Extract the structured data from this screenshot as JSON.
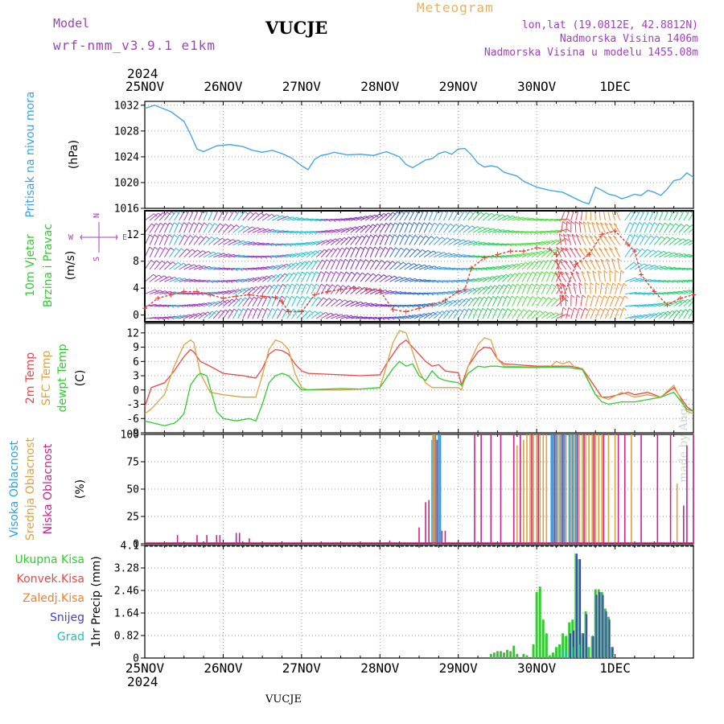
{
  "header": {
    "model_label": "Model",
    "model_name": "wrf-nmm_v3.9.1  e1km",
    "station": "VUCJE",
    "title": "Meteogram",
    "lonlat": "lon,lat (19.0812E, 42.8812N)",
    "elevation": "Nadmorska Visina 1406m",
    "model_elevation": "Nadmorska Visina u modelu 1455.08m"
  },
  "footer": {
    "station": "VUCJE",
    "credit": "made by Angel"
  },
  "colors": {
    "pressure": "#3aa0e8",
    "temp2m": "#ee4444",
    "sfc": "#e0a040",
    "dew": "#30cc30",
    "cloud_high": "#2ea0e0",
    "cloud_mid": "#e0a040",
    "cloud_low": "#d0208a",
    "precip_total": "#30cc30",
    "precip_conv": "#ee4444",
    "precip_frz": "#f08030",
    "snow": "#4040d0",
    "hail": "#20c0c0",
    "purple": "#a040c0"
  },
  "time_axis": {
    "year": "2024",
    "days": [
      "25NOV",
      "26NOV",
      "27NOV",
      "28NOV",
      "29NOV",
      "30NOV",
      "1DEC"
    ]
  },
  "chart_data": [
    {
      "type": "line",
      "panel": "pressure",
      "ylabel": [
        "Pritisak na nivou mora",
        "(hPa)"
      ],
      "yticks": [
        "1032",
        "1028",
        "1024",
        "1020",
        "1016"
      ],
      "ylim": [
        1016,
        1032.6
      ],
      "x_unit": "hours since 25NOV 00",
      "series": [
        {
          "name": "Pritisak na nivou mora",
          "x": [
            0,
            3,
            8,
            12,
            14,
            16,
            18,
            22,
            26,
            30,
            33,
            36,
            39,
            42,
            45,
            48,
            50,
            52,
            54,
            56,
            58,
            62,
            66,
            70,
            74,
            78,
            80,
            82,
            84,
            86,
            88,
            90,
            92,
            94,
            96,
            98,
            100,
            102,
            104,
            106,
            108,
            110,
            112,
            114,
            116,
            120,
            124,
            128,
            130,
            132,
            134,
            136,
            138,
            140,
            142,
            144,
            146,
            148,
            150,
            152,
            154,
            156,
            158,
            160,
            162,
            164,
            166,
            168
          ],
          "y": [
            1031.5,
            1032.0,
            1031.0,
            1029.5,
            1027.5,
            1025.2,
            1024.8,
            1025.7,
            1025.9,
            1025.6,
            1025.0,
            1024.7,
            1025.0,
            1024.5,
            1023.8,
            1022.6,
            1022.0,
            1023.6,
            1024.2,
            1024.4,
            1024.7,
            1024.3,
            1024.4,
            1024.2,
            1024.8,
            1024.0,
            1022.8,
            1022.3,
            1022.9,
            1023.5,
            1023.7,
            1024.5,
            1024.8,
            1024.4,
            1025.2,
            1025.3,
            1024.3,
            1023.0,
            1022.4,
            1022.6,
            1022.4,
            1021.6,
            1021.3,
            1021.0,
            1020.2,
            1019.3,
            1018.8,
            1018.5,
            1018.0,
            1017.5,
            1017.0,
            1016.7,
            1019.3,
            1018.8,
            1018.2,
            1018.0,
            1017.5,
            1017.8,
            1018.2,
            1018.0,
            1018.8,
            1018.5,
            1018.0,
            1019.0,
            1020.3,
            1020.5,
            1021.5,
            1020.8
          ]
        }
      ]
    },
    {
      "type": "line",
      "panel": "wind",
      "ylabel": [
        "10m Vjetar",
        "Brzina i Pravac",
        "(m/s)"
      ],
      "compass": [
        "N",
        "W",
        "E",
        "S"
      ],
      "yticks": [
        "12",
        "8",
        "4",
        "0"
      ],
      "ylim": [
        -1,
        15.5
      ],
      "series": [
        {
          "name": "10m Vjetar",
          "x": [
            0,
            4,
            8,
            12,
            16,
            20,
            24,
            28,
            32,
            36,
            40,
            42,
            44,
            48,
            52,
            56,
            60,
            64,
            68,
            72,
            76,
            80,
            84,
            88,
            92,
            96,
            98,
            100,
            104,
            108,
            112,
            116,
            120,
            124,
            126,
            128,
            132,
            136,
            140,
            144,
            148,
            150,
            152,
            156,
            160,
            164,
            168
          ],
          "y": [
            1.0,
            2.5,
            3.0,
            3.5,
            3.5,
            3.0,
            2.5,
            2.8,
            3.0,
            2.8,
            2.6,
            2.0,
            0.5,
            0.5,
            3.0,
            3.5,
            3.8,
            4.0,
            3.8,
            3.6,
            0.8,
            0.5,
            1.0,
            1.5,
            2.2,
            3.5,
            3.8,
            7.0,
            8.5,
            9.0,
            9.5,
            9.5,
            10.0,
            9.8,
            9.0,
            2.5,
            7.5,
            9.0,
            12.0,
            12.5,
            10.5,
            9.5,
            6.0,
            3.5,
            1.5,
            2.5,
            3.0
          ]
        }
      ]
    },
    {
      "type": "line",
      "panel": "temperature",
      "ylabel": [
        "2m Temp",
        "SFC Temp",
        "dewpt Temp",
        "(C)"
      ],
      "yticks": [
        "12",
        "9",
        "6",
        "3",
        "0",
        "-3",
        "-6",
        "-9"
      ],
      "ylim": [
        -9,
        14
      ],
      "series": [
        {
          "name": "2m Temp",
          "x": [
            0,
            2,
            6,
            9,
            12,
            14,
            15,
            17,
            20,
            24,
            30,
            34,
            36,
            38,
            40,
            42,
            44,
            46,
            48,
            50,
            60,
            66,
            72,
            74,
            76,
            78,
            80,
            82,
            84,
            86,
            88,
            90,
            92,
            96,
            97,
            99,
            102,
            104,
            106,
            108,
            110,
            120,
            124,
            130,
            132,
            134,
            138,
            140,
            142,
            148,
            150,
            154,
            158,
            162,
            166,
            168
          ],
          "y": [
            -3.5,
            0.5,
            1.5,
            4.0,
            7.0,
            8.5,
            8.0,
            6.0,
            5.0,
            3.5,
            3.0,
            2.5,
            4.5,
            7.5,
            8.5,
            8.3,
            7.5,
            5.5,
            4.0,
            3.5,
            3.2,
            3.0,
            3.2,
            5.5,
            7.5,
            9.5,
            10.5,
            9.0,
            7.5,
            6.0,
            5.0,
            5.3,
            4.0,
            3.6,
            1.0,
            5.0,
            8.0,
            9.0,
            8.8,
            6.5,
            5.5,
            5.0,
            5.0,
            5.0,
            4.8,
            4.5,
            0.5,
            -1.5,
            -1.5,
            -0.5,
            -1.0,
            -0.5,
            -1.5,
            0.5,
            -3.5,
            -4.5
          ]
        },
        {
          "name": "SFC Temp",
          "x": [
            0,
            2,
            6,
            9,
            12,
            14,
            15,
            17,
            20,
            24,
            30,
            34,
            36,
            38,
            40,
            42,
            44,
            46,
            48,
            50,
            60,
            66,
            72,
            74,
            76,
            78,
            80,
            82,
            84,
            86,
            88,
            90,
            92,
            96,
            97,
            99,
            102,
            104,
            106,
            108,
            110,
            120,
            124,
            126,
            128,
            130,
            132,
            134,
            138,
            140,
            142,
            146,
            150,
            154,
            158,
            162,
            166,
            168
          ],
          "y": [
            -5.0,
            -4.0,
            -1.0,
            5.0,
            9.5,
            10.5,
            10.0,
            3.5,
            -0.5,
            -1.0,
            -1.5,
            -1.5,
            3.0,
            8.5,
            10.5,
            10.0,
            8.5,
            3.5,
            0.5,
            0.0,
            0.0,
            0.2,
            0.5,
            5.0,
            10.0,
            12.5,
            12.0,
            8.0,
            4.0,
            1.5,
            0.5,
            0.5,
            0.5,
            0.5,
            0.0,
            5.0,
            9.5,
            11.0,
            10.5,
            6.5,
            5.0,
            4.8,
            4.8,
            6.0,
            5.5,
            6.0,
            4.5,
            4.5,
            -1.0,
            -1.5,
            -2.0,
            -0.5,
            -1.5,
            -1.0,
            -1.5,
            1.0,
            -4.5,
            -5.0
          ]
        },
        {
          "name": "dewpt Temp",
          "x": [
            0,
            3,
            6,
            9,
            10,
            12,
            14,
            16,
            17,
            19,
            22,
            24,
            28,
            32,
            34,
            36,
            38,
            40,
            42,
            44,
            48,
            60,
            66,
            72,
            74,
            76,
            78,
            80,
            82,
            84,
            86,
            88,
            90,
            92,
            96,
            97,
            99,
            102,
            104,
            106,
            108,
            110,
            120,
            124,
            130,
            132,
            134,
            138,
            140,
            142,
            146,
            150,
            154,
            158,
            162,
            166,
            168
          ],
          "y": [
            -6.5,
            -7.0,
            -7.5,
            -7.0,
            -6.5,
            -5.0,
            1.0,
            3.0,
            3.5,
            3.0,
            -4.5,
            -6.0,
            -6.5,
            -6.0,
            -6.5,
            -3.0,
            1.5,
            3.0,
            3.5,
            3.0,
            0.0,
            0.3,
            0.2,
            0.5,
            2.5,
            4.5,
            6.0,
            5.0,
            5.5,
            3.0,
            2.0,
            4.0,
            2.5,
            2.0,
            1.5,
            1.0,
            3.5,
            5.0,
            4.8,
            5.0,
            5.0,
            4.8,
            4.7,
            4.8,
            4.7,
            4.5,
            4.3,
            -1.0,
            -2.5,
            -3.0,
            -2.5,
            -2.5,
            -2.0,
            -1.5,
            -0.5,
            -4.0,
            -4.5
          ]
        }
      ]
    },
    {
      "type": "bar",
      "panel": "clouds",
      "ylabel": [
        "Visoka Oblacnost",
        "Srednja Oblacnost",
        "Niska Oblacnost",
        "(%)"
      ],
      "yticks": [
        "100",
        "75",
        "50",
        "25",
        "0"
      ],
      "ylim": [
        0,
        100
      ],
      "series": [
        {
          "name": "Visoka Oblacnost",
          "x": [
            88,
            88.5,
            89,
            90,
            90.5,
            124.5,
            125,
            126,
            127.5,
            128.5,
            130,
            131,
            132
          ],
          "y": [
            95,
            100,
            100,
            100,
            100,
            100,
            100,
            100,
            100,
            100,
            100,
            100,
            100
          ]
        },
        {
          "name": "Srednja Oblacnost",
          "x": [
            88.2,
            88.7,
            114,
            116,
            117,
            118,
            119,
            120,
            121,
            122,
            123,
            126.5,
            127,
            129,
            130.5,
            131.5,
            133,
            134,
            135,
            136,
            137,
            138,
            139,
            140,
            142,
            144,
            149,
            163
          ],
          "y": [
            100,
            100,
            90,
            95,
            100,
            100,
            100,
            100,
            100,
            100,
            100,
            100,
            100,
            100,
            100,
            100,
            100,
            100,
            100,
            100,
            100,
            100,
            100,
            100,
            100,
            100,
            100,
            55
          ]
        },
        {
          "name": "Niska Oblacnost",
          "x": [
            10,
            16,
            19,
            22,
            23,
            28,
            29,
            32,
            75,
            84,
            86,
            87,
            89.5,
            91,
            92,
            101,
            103,
            106,
            109,
            113,
            115,
            118.5,
            120.5,
            125.5,
            128,
            132.5,
            134.5,
            137.5,
            140.5,
            145,
            147,
            152,
            157,
            161,
            165,
            166,
            168
          ],
          "y": [
            8,
            8,
            8,
            8,
            8,
            10,
            10,
            5,
            3,
            15,
            38,
            40,
            95,
            12,
            12,
            100,
            100,
            100,
            100,
            100,
            100,
            100,
            100,
            100,
            100,
            100,
            100,
            100,
            100,
            100,
            100,
            100,
            100,
            100,
            35,
            90,
            100
          ]
        }
      ]
    },
    {
      "type": "bar",
      "panel": "precipitation",
      "ylabel": [
        "Ukupna Kisa",
        "Konvek.Kisa",
        "Zaledj.Kisa",
        "Snijeg",
        "Grad",
        "1hr Precip (mm)"
      ],
      "yticks": [
        "4.1",
        "3.28",
        "2.46",
        "1.64",
        "0.82",
        "0"
      ],
      "ylim": [
        0,
        4.1
      ],
      "series": [
        {
          "name": "Ukupna Kisa",
          "x": [
            106,
            107,
            108,
            109,
            110,
            111,
            112,
            113,
            114,
            116,
            117,
            119,
            120,
            121,
            122,
            123,
            124,
            125,
            126,
            127,
            128,
            129,
            130,
            131,
            132,
            133,
            134,
            135,
            136,
            137,
            138,
            139,
            140,
            141,
            142,
            143
          ],
          "y": [
            0.15,
            0.2,
            0.25,
            0.25,
            0.2,
            0.3,
            0.25,
            0.45,
            0.15,
            0.15,
            0.1,
            0.5,
            2.4,
            2.6,
            1.4,
            0.9,
            0.1,
            0.2,
            0.4,
            0.5,
            0.9,
            0.8,
            1.3,
            1.4,
            3.8,
            3.6,
            0.9,
            1.7,
            0.4,
            0.8,
            2.5,
            2.5,
            2.4,
            1.8,
            1.5,
            0.4
          ]
        },
        {
          "name": "Snijeg",
          "x": [
            130,
            131,
            132,
            133,
            134,
            135,
            137,
            138,
            139,
            140,
            141,
            142,
            143
          ],
          "y": [
            0.9,
            1.0,
            3.8,
            3.6,
            0.9,
            1.6,
            0.8,
            2.3,
            2.4,
            2.3,
            1.7,
            1.4,
            0.4
          ]
        },
        {
          "name": "Grad",
          "x": [
            128,
            129,
            131,
            133
          ],
          "y": [
            0.3,
            0.2,
            0.4,
            0.5
          ]
        }
      ]
    }
  ]
}
